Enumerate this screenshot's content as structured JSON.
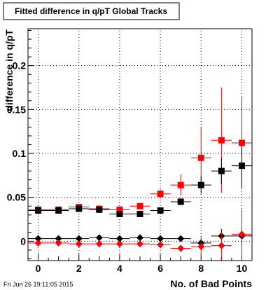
{
  "chart_data": {
    "type": "scatter",
    "title": "Fitted difference in q/pT  Global Tracks",
    "xlabel": "No. of Bad Points",
    "ylabel": "difference in q/pT",
    "xlim": [
      -0.5,
      10.5
    ],
    "ylim": [
      -0.022,
      0.242
    ],
    "x_ticks": [
      0,
      2,
      4,
      6,
      8,
      10
    ],
    "x_tick_labels": [
      "0",
      "2",
      "4",
      "6",
      "8",
      "10"
    ],
    "y_ticks": [
      0,
      0.05,
      0.1,
      0.15,
      0.2
    ],
    "y_tick_labels": [
      "0",
      "0.05",
      "0.1",
      "0.15",
      "0.2"
    ],
    "grid": true,
    "timestamp": "Fri Jun 26 19:11:05 2015",
    "series": [
      {
        "marker": "square",
        "color": "#ff0000",
        "x": [
          0,
          1,
          2,
          3,
          4,
          5,
          6,
          7,
          8,
          9,
          10
        ],
        "y": [
          0.036,
          0.036,
          0.039,
          0.037,
          0.036,
          0.04,
          0.054,
          0.064,
          0.095,
          0.115,
          0.112
        ],
        "err": [
          0.002,
          0.002,
          0.002,
          0.002,
          0.003,
          0.003,
          0.005,
          0.012,
          0.035,
          0.06,
          0.052
        ]
      },
      {
        "marker": "square",
        "color": "#000000",
        "x": [
          0,
          1,
          2,
          3,
          4,
          5,
          6,
          7,
          8,
          9,
          10
        ],
        "y": [
          0.035,
          0.035,
          0.037,
          0.036,
          0.031,
          0.031,
          0.035,
          0.045,
          0.064,
          0.08,
          0.086
        ],
        "err": [
          0.001,
          0.001,
          0.001,
          0.001,
          0.002,
          0.002,
          0.003,
          0.004,
          0.01,
          0.015,
          0.025
        ]
      },
      {
        "marker": "diamond",
        "color": "#000000",
        "x": [
          0,
          1,
          2,
          3,
          4,
          5,
          6,
          7,
          8,
          9,
          10
        ],
        "y": [
          0.003,
          0.003,
          0.003,
          0.004,
          0.003,
          0.004,
          0.003,
          0.003,
          -0.002,
          0.006,
          0.006
        ],
        "err": [
          0.001,
          0.001,
          0.001,
          0.001,
          0.001,
          0.001,
          0.002,
          0.002,
          0.004,
          0.008,
          0.01
        ]
      },
      {
        "marker": "diamond",
        "color": "#ff0000",
        "x": [
          0,
          1,
          2,
          3,
          4,
          5,
          6,
          7,
          8,
          9,
          10
        ],
        "y": [
          -0.002,
          -0.002,
          -0.003,
          -0.003,
          -0.003,
          -0.003,
          -0.004,
          -0.008,
          -0.006,
          -0.005,
          0.008
        ],
        "err": [
          0.001,
          0.001,
          0.001,
          0.001,
          0.001,
          0.001,
          0.002,
          0.004,
          0.012,
          0.015,
          0.028
        ]
      }
    ]
  }
}
